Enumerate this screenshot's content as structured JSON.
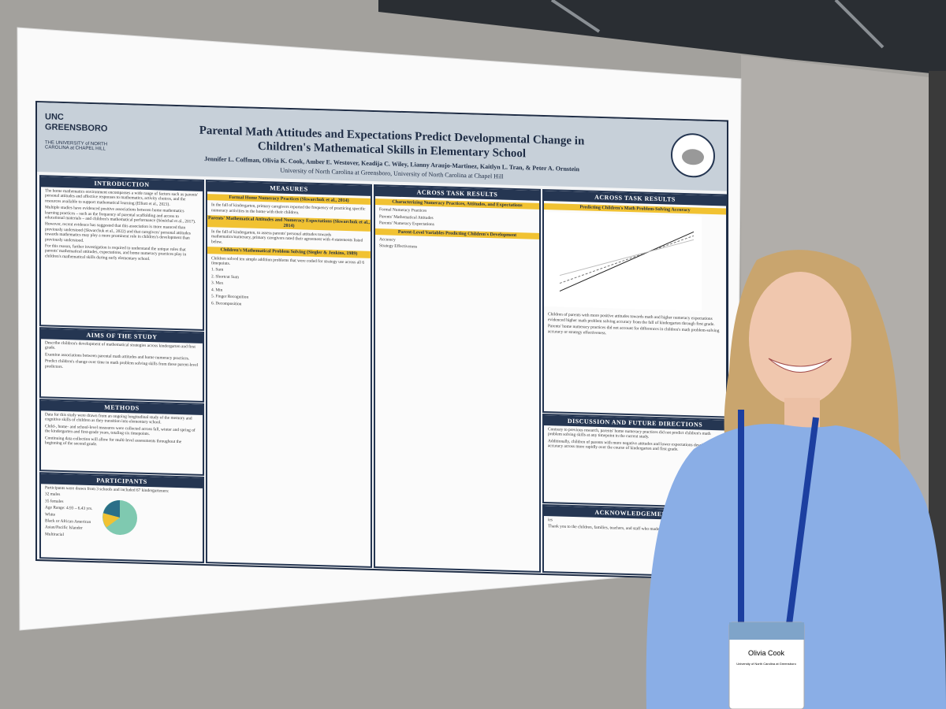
{
  "poster": {
    "logo": [
      "UNC",
      "GREENSBORO",
      "THE UNIVERSITY of NORTH CAROLINA at CHAPEL HILL"
    ],
    "title": [
      "Parental Math Attitudes and Expectations Predict Developmental Change in",
      "Children's Mathematical Skills in Elementary School"
    ],
    "authors": "Jennifer L. Coffman, Olivia K. Cook, Amber E. Westover, Keadija C. Wiley, Lianny Araujo-Martinez, Kaitlyn L. Tran, & Peter A. Ornstein",
    "affiliation": "University of North Carolina at Greensboro, University of North Carolina at Chapel Hill",
    "sections": [
      {
        "heading": "INTRODUCTION",
        "lines": [
          "The home mathematics environment encompasses a wide range of factors such as parents' personal attitudes and affective responses to mathematics, activity choices, and the resources available to support mathematical learning (Elliott et al., 2021).",
          "Multiple studies have evidenced positive associations between home mathematics learning practices – such as the frequency of parental scaffolding and access to educational materials – and children's mathematical performance (Sénéchal et al., 2017).",
          "However, recent evidence has suggested that this association is more nuanced than previously understood (Skwarchuk et al., 2022) and that caregivers' personal attitudes towards mathematics may play a more prominent role in children's development than previously understood.",
          "For this reason, further investigation is required to understand the unique roles that parents' mathematical attitudes, expectations, and home numeracy practices play in children's mathematical skills during early elementary school."
        ]
      },
      {
        "heading": "AIMS OF THE STUDY",
        "lines": [
          "Describe children's development of mathematical strategies across kindergarten and first grade.",
          "Examine associations between parental math attitudes and home numeracy practices.",
          "Predict children's change over time in math problem solving skills from these parent-level predictors."
        ]
      },
      {
        "heading": "METHODS",
        "lines": [
          "Data for this study were drawn from an ongoing longitudinal study of the memory and cognitive skills of children as they transition into elementary school.",
          "Child-, home- and school-level measures were collected across fall, winter and spring of the kindergarten and first-grade years, totaling six timepoints.",
          "Continuing data collection will allow for multi-level assessments throughout the beginning of the second grade."
        ]
      },
      {
        "heading": "PARTICIPANTS",
        "lines": [
          "Participants were drawn from 3 schools and included 67 kindergarteners:",
          "32 males",
          "35 females",
          "Age Range: 4.93 – 6.43 yrs.",
          "White",
          "Black or African American",
          "Asian/Pacific Islander",
          "Multiracial"
        ]
      },
      {
        "heading": "MEASURES",
        "lines": [
          "Formal Home Numeracy Practices (Skwarchuk et al., 2014)",
          "In the fall of kindergarten, primary caregivers reported the frequency of practicing specific numeracy activities in the home with their children.",
          "Parents' Mathematical Attitudes and Numeracy Expectations (Skwarchuk et al., 2014)",
          "In the fall of kindergarten, to assess parents' personal attitudes towards mathematics/numeracy, primary caregivers rated their agreement with 4 statements listed below.",
          "Children's Mathematical Problem Solving (Siegler & Jenkins, 1989)",
          "Children solved ten simple addition problems that were coded for strategy use across all 6 timepoints.",
          "1. Sum",
          "2. Shortcut Sum",
          "3. Max",
          "4. Min",
          "5. Finger Recognition",
          "6. Decomposition"
        ]
      },
      {
        "heading": "ACROSS TASK RESULTS",
        "lines": [
          "Characterizing Numeracy Practices, Attitudes, and Expectations",
          "Formal Numeracy Practices",
          "Parents' Mathematical Attitudes",
          "Parents' Numeracy Expectations",
          "Parent-Level Variables Predicting Children's Development",
          "Accuracy",
          "Strategy Effectiveness"
        ]
      },
      {
        "heading": "ACROSS TASK RESULTS",
        "lines": [
          "Predicting Children's Math Problem-Solving Accuracy",
          "Children of parents with more positive attitudes towards math and higher numeracy expectations evidenced higher math problem solving accuracy from the fall of kindergarten through first grade.",
          "Parents' home numeracy practices did not account for differences in children's math problem-solving accuracy or strategy effectiveness."
        ]
      },
      {
        "heading": "DISCUSSION AND FUTURE DIRECTIONS",
        "lines": [
          "Contrary to previous research, parents' home numeracy practices did not predict children's math problem solving skills at any timepoint in the current study.",
          "Additionally, children of parents with more negative attitudes and lower expectations developed accuracy across more rapidly over the course of kindergarten and first grade."
        ]
      },
      {
        "heading": "ACKNOWLEDGEMENTS",
        "lines": [
          "ies",
          "Thank you to the children, families, teachers, and staff who made this research possible."
        ]
      }
    ]
  },
  "badge": {
    "name": "Olivia Cook",
    "org": "University of North Carolina at Greensboro"
  }
}
